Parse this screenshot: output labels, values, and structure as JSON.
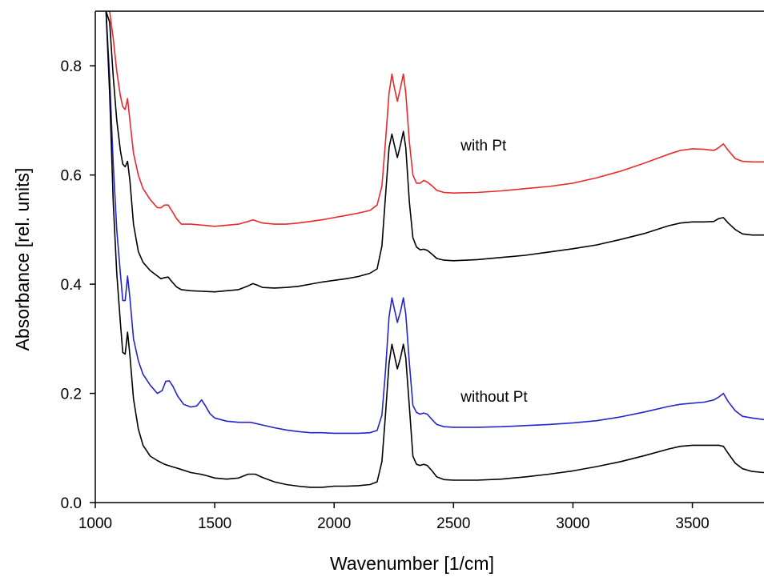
{
  "chart_data": {
    "type": "line",
    "title": "",
    "xlabel": "Wavenumber [1/cm]",
    "ylabel": "Absorbance [rel. units]",
    "xlim": [
      1000,
      3800
    ],
    "ylim": [
      0.0,
      0.9
    ],
    "x_ticks": [
      1000,
      1500,
      2000,
      2500,
      3000,
      3500
    ],
    "y_ticks": [
      0.0,
      0.2,
      0.4,
      0.6,
      0.8
    ],
    "x_tick_labels": [
      "1000",
      "1500",
      "2000",
      "2500",
      "3000",
      "3500"
    ],
    "y_tick_labels": [
      "0.0",
      "0.2",
      "0.4",
      "0.6",
      "0.8"
    ],
    "grid": false,
    "legend": "none",
    "annotations": [
      {
        "text": "with Pt",
        "x": 2530,
        "y": 0.645
      },
      {
        "text": "without Pt",
        "x": 2530,
        "y": 0.185
      }
    ],
    "series": [
      {
        "color": "#e8282b",
        "points": [
          [
            1045,
            0.9
          ],
          [
            1060,
            0.9
          ],
          [
            1075,
            0.85
          ],
          [
            1090,
            0.79
          ],
          [
            1105,
            0.745
          ],
          [
            1115,
            0.725
          ],
          [
            1125,
            0.72
          ],
          [
            1135,
            0.74
          ],
          [
            1145,
            0.7
          ],
          [
            1160,
            0.64
          ],
          [
            1180,
            0.6
          ],
          [
            1200,
            0.575
          ],
          [
            1230,
            0.555
          ],
          [
            1260,
            0.54
          ],
          [
            1275,
            0.54
          ],
          [
            1290,
            0.545
          ],
          [
            1305,
            0.545
          ],
          [
            1320,
            0.535
          ],
          [
            1340,
            0.52
          ],
          [
            1360,
            0.51
          ],
          [
            1400,
            0.51
          ],
          [
            1450,
            0.508
          ],
          [
            1500,
            0.506
          ],
          [
            1550,
            0.508
          ],
          [
            1600,
            0.51
          ],
          [
            1640,
            0.515
          ],
          [
            1660,
            0.518
          ],
          [
            1680,
            0.515
          ],
          [
            1700,
            0.512
          ],
          [
            1750,
            0.51
          ],
          [
            1800,
            0.51
          ],
          [
            1850,
            0.512
          ],
          [
            1900,
            0.515
          ],
          [
            1950,
            0.518
          ],
          [
            2000,
            0.522
          ],
          [
            2050,
            0.526
          ],
          [
            2100,
            0.53
          ],
          [
            2150,
            0.535
          ],
          [
            2180,
            0.545
          ],
          [
            2200,
            0.58
          ],
          [
            2215,
            0.66
          ],
          [
            2230,
            0.75
          ],
          [
            2242,
            0.785
          ],
          [
            2252,
            0.76
          ],
          [
            2265,
            0.735
          ],
          [
            2278,
            0.76
          ],
          [
            2290,
            0.785
          ],
          [
            2300,
            0.75
          ],
          [
            2315,
            0.66
          ],
          [
            2330,
            0.6
          ],
          [
            2345,
            0.585
          ],
          [
            2360,
            0.585
          ],
          [
            2375,
            0.59
          ],
          [
            2390,
            0.587
          ],
          [
            2410,
            0.58
          ],
          [
            2430,
            0.572
          ],
          [
            2460,
            0.568
          ],
          [
            2500,
            0.567
          ],
          [
            2600,
            0.568
          ],
          [
            2700,
            0.571
          ],
          [
            2800,
            0.575
          ],
          [
            2900,
            0.579
          ],
          [
            3000,
            0.585
          ],
          [
            3100,
            0.595
          ],
          [
            3200,
            0.607
          ],
          [
            3300,
            0.622
          ],
          [
            3400,
            0.638
          ],
          [
            3450,
            0.645
          ],
          [
            3500,
            0.648
          ],
          [
            3550,
            0.647
          ],
          [
            3590,
            0.645
          ],
          [
            3610,
            0.65
          ],
          [
            3630,
            0.657
          ],
          [
            3650,
            0.645
          ],
          [
            3680,
            0.63
          ],
          [
            3710,
            0.625
          ],
          [
            3750,
            0.624
          ],
          [
            3800,
            0.624
          ]
        ]
      },
      {
        "color": "#000000",
        "points": [
          [
            1045,
            0.9
          ],
          [
            1060,
            0.88
          ],
          [
            1075,
            0.78
          ],
          [
            1090,
            0.7
          ],
          [
            1105,
            0.645
          ],
          [
            1115,
            0.62
          ],
          [
            1125,
            0.615
          ],
          [
            1135,
            0.625
          ],
          [
            1145,
            0.59
          ],
          [
            1160,
            0.51
          ],
          [
            1180,
            0.46
          ],
          [
            1200,
            0.44
          ],
          [
            1230,
            0.425
          ],
          [
            1260,
            0.415
          ],
          [
            1275,
            0.41
          ],
          [
            1290,
            0.412
          ],
          [
            1305,
            0.413
          ],
          [
            1320,
            0.405
          ],
          [
            1340,
            0.395
          ],
          [
            1360,
            0.39
          ],
          [
            1400,
            0.388
          ],
          [
            1450,
            0.387
          ],
          [
            1500,
            0.386
          ],
          [
            1550,
            0.388
          ],
          [
            1600,
            0.39
          ],
          [
            1640,
            0.397
          ],
          [
            1660,
            0.401
          ],
          [
            1680,
            0.398
          ],
          [
            1700,
            0.394
          ],
          [
            1750,
            0.393
          ],
          [
            1800,
            0.394
          ],
          [
            1850,
            0.396
          ],
          [
            1900,
            0.4
          ],
          [
            1950,
            0.404
          ],
          [
            2000,
            0.407
          ],
          [
            2050,
            0.41
          ],
          [
            2100,
            0.414
          ],
          [
            2150,
            0.42
          ],
          [
            2180,
            0.428
          ],
          [
            2200,
            0.47
          ],
          [
            2215,
            0.56
          ],
          [
            2230,
            0.65
          ],
          [
            2242,
            0.675
          ],
          [
            2252,
            0.655
          ],
          [
            2265,
            0.632
          ],
          [
            2278,
            0.655
          ],
          [
            2290,
            0.68
          ],
          [
            2300,
            0.65
          ],
          [
            2315,
            0.55
          ],
          [
            2330,
            0.485
          ],
          [
            2345,
            0.468
          ],
          [
            2360,
            0.463
          ],
          [
            2375,
            0.464
          ],
          [
            2390,
            0.462
          ],
          [
            2410,
            0.455
          ],
          [
            2430,
            0.447
          ],
          [
            2460,
            0.444
          ],
          [
            2500,
            0.443
          ],
          [
            2600,
            0.445
          ],
          [
            2700,
            0.449
          ],
          [
            2800,
            0.453
          ],
          [
            2900,
            0.459
          ],
          [
            3000,
            0.465
          ],
          [
            3100,
            0.472
          ],
          [
            3200,
            0.482
          ],
          [
            3300,
            0.493
          ],
          [
            3400,
            0.507
          ],
          [
            3450,
            0.512
          ],
          [
            3500,
            0.514
          ],
          [
            3550,
            0.514
          ],
          [
            3590,
            0.515
          ],
          [
            3610,
            0.52
          ],
          [
            3630,
            0.522
          ],
          [
            3650,
            0.512
          ],
          [
            3680,
            0.5
          ],
          [
            3710,
            0.492
          ],
          [
            3750,
            0.49
          ],
          [
            3800,
            0.49
          ]
        ]
      },
      {
        "color": "#2424c8",
        "points": [
          [
            1045,
            0.9
          ],
          [
            1060,
            0.78
          ],
          [
            1075,
            0.62
          ],
          [
            1090,
            0.5
          ],
          [
            1105,
            0.42
          ],
          [
            1115,
            0.37
          ],
          [
            1125,
            0.37
          ],
          [
            1135,
            0.415
          ],
          [
            1145,
            0.375
          ],
          [
            1160,
            0.3
          ],
          [
            1180,
            0.26
          ],
          [
            1200,
            0.235
          ],
          [
            1230,
            0.215
          ],
          [
            1260,
            0.2
          ],
          [
            1280,
            0.205
          ],
          [
            1295,
            0.222
          ],
          [
            1310,
            0.223
          ],
          [
            1325,
            0.213
          ],
          [
            1345,
            0.195
          ],
          [
            1370,
            0.18
          ],
          [
            1400,
            0.175
          ],
          [
            1425,
            0.177
          ],
          [
            1445,
            0.188
          ],
          [
            1460,
            0.178
          ],
          [
            1480,
            0.163
          ],
          [
            1500,
            0.155
          ],
          [
            1550,
            0.149
          ],
          [
            1600,
            0.147
          ],
          [
            1650,
            0.147
          ],
          [
            1700,
            0.142
          ],
          [
            1750,
            0.137
          ],
          [
            1800,
            0.133
          ],
          [
            1850,
            0.13
          ],
          [
            1900,
            0.128
          ],
          [
            1950,
            0.128
          ],
          [
            2000,
            0.127
          ],
          [
            2050,
            0.127
          ],
          [
            2100,
            0.127
          ],
          [
            2150,
            0.128
          ],
          [
            2180,
            0.132
          ],
          [
            2200,
            0.16
          ],
          [
            2215,
            0.24
          ],
          [
            2230,
            0.34
          ],
          [
            2242,
            0.375
          ],
          [
            2252,
            0.355
          ],
          [
            2265,
            0.33
          ],
          [
            2278,
            0.35
          ],
          [
            2290,
            0.375
          ],
          [
            2300,
            0.345
          ],
          [
            2315,
            0.255
          ],
          [
            2330,
            0.178
          ],
          [
            2345,
            0.165
          ],
          [
            2360,
            0.162
          ],
          [
            2375,
            0.164
          ],
          [
            2390,
            0.162
          ],
          [
            2410,
            0.152
          ],
          [
            2430,
            0.143
          ],
          [
            2460,
            0.139
          ],
          [
            2500,
            0.138
          ],
          [
            2600,
            0.138
          ],
          [
            2700,
            0.139
          ],
          [
            2800,
            0.141
          ],
          [
            2900,
            0.143
          ],
          [
            3000,
            0.146
          ],
          [
            3100,
            0.15
          ],
          [
            3200,
            0.157
          ],
          [
            3300,
            0.166
          ],
          [
            3400,
            0.176
          ],
          [
            3450,
            0.18
          ],
          [
            3500,
            0.182
          ],
          [
            3550,
            0.184
          ],
          [
            3590,
            0.188
          ],
          [
            3610,
            0.193
          ],
          [
            3630,
            0.2
          ],
          [
            3650,
            0.185
          ],
          [
            3680,
            0.168
          ],
          [
            3710,
            0.158
          ],
          [
            3750,
            0.155
          ],
          [
            3800,
            0.152
          ]
        ]
      },
      {
        "color": "#000000",
        "points": [
          [
            1045,
            0.9
          ],
          [
            1060,
            0.75
          ],
          [
            1075,
            0.55
          ],
          [
            1090,
            0.42
          ],
          [
            1105,
            0.33
          ],
          [
            1115,
            0.275
          ],
          [
            1125,
            0.272
          ],
          [
            1135,
            0.312
          ],
          [
            1145,
            0.27
          ],
          [
            1160,
            0.19
          ],
          [
            1180,
            0.135
          ],
          [
            1200,
            0.105
          ],
          [
            1230,
            0.085
          ],
          [
            1260,
            0.077
          ],
          [
            1290,
            0.07
          ],
          [
            1320,
            0.066
          ],
          [
            1350,
            0.062
          ],
          [
            1400,
            0.055
          ],
          [
            1440,
            0.052
          ],
          [
            1460,
            0.05
          ],
          [
            1500,
            0.045
          ],
          [
            1550,
            0.043
          ],
          [
            1600,
            0.045
          ],
          [
            1640,
            0.052
          ],
          [
            1670,
            0.052
          ],
          [
            1700,
            0.046
          ],
          [
            1750,
            0.038
          ],
          [
            1800,
            0.033
          ],
          [
            1850,
            0.03
          ],
          [
            1900,
            0.028
          ],
          [
            1950,
            0.028
          ],
          [
            2000,
            0.03
          ],
          [
            2050,
            0.03
          ],
          [
            2100,
            0.031
          ],
          [
            2150,
            0.033
          ],
          [
            2180,
            0.038
          ],
          [
            2200,
            0.075
          ],
          [
            2215,
            0.16
          ],
          [
            2230,
            0.255
          ],
          [
            2242,
            0.29
          ],
          [
            2252,
            0.27
          ],
          [
            2265,
            0.245
          ],
          [
            2278,
            0.265
          ],
          [
            2290,
            0.29
          ],
          [
            2300,
            0.265
          ],
          [
            2315,
            0.175
          ],
          [
            2330,
            0.085
          ],
          [
            2345,
            0.07
          ],
          [
            2360,
            0.068
          ],
          [
            2375,
            0.07
          ],
          [
            2390,
            0.068
          ],
          [
            2410,
            0.058
          ],
          [
            2430,
            0.047
          ],
          [
            2460,
            0.042
          ],
          [
            2500,
            0.041
          ],
          [
            2600,
            0.041
          ],
          [
            2700,
            0.043
          ],
          [
            2800,
            0.047
          ],
          [
            2900,
            0.052
          ],
          [
            3000,
            0.058
          ],
          [
            3100,
            0.066
          ],
          [
            3200,
            0.075
          ],
          [
            3300,
            0.086
          ],
          [
            3400,
            0.098
          ],
          [
            3450,
            0.103
          ],
          [
            3500,
            0.105
          ],
          [
            3550,
            0.105
          ],
          [
            3590,
            0.105
          ],
          [
            3610,
            0.105
          ],
          [
            3630,
            0.103
          ],
          [
            3650,
            0.09
          ],
          [
            3680,
            0.072
          ],
          [
            3710,
            0.062
          ],
          [
            3750,
            0.057
          ],
          [
            3800,
            0.055
          ]
        ]
      }
    ]
  }
}
